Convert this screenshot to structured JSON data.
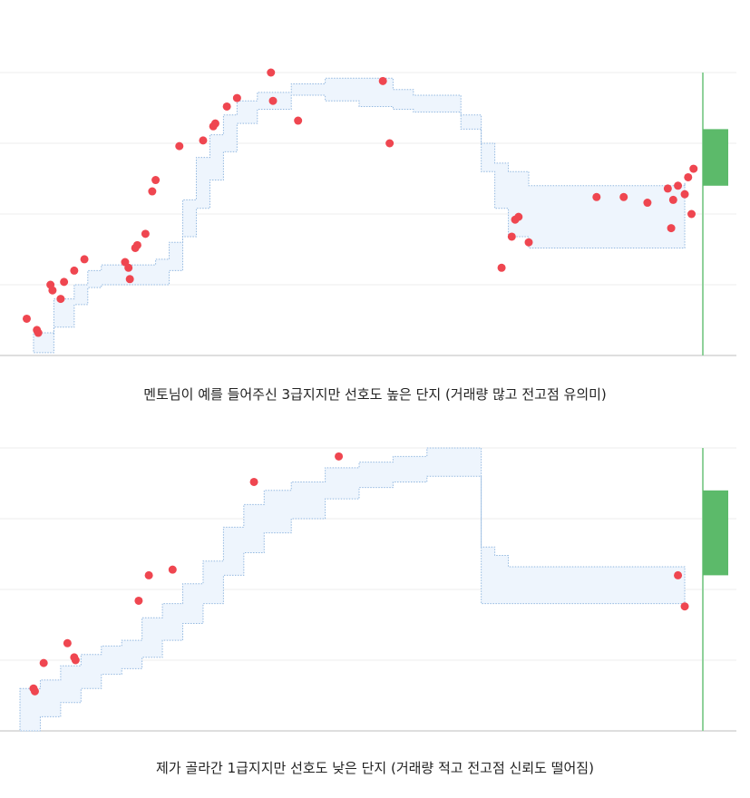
{
  "colors": {
    "band_fill": "#eef5fd",
    "band_stroke": "#93b8e0",
    "point": "#ef4650",
    "marker_line": "#8fd19a",
    "marker_box": "#5cba6a",
    "gridline": "#eeeeee",
    "baseline": "#bdbdbd"
  },
  "chart_data": [
    {
      "type": "scatter",
      "title": "",
      "caption": "멘토님이 예를 들어주신 3급지지만 선호도 높은 단지 (거래량 많고 전고점 유의미)",
      "xlim": [
        0,
        100
      ],
      "ylim": [
        0,
        100
      ],
      "grid": true,
      "band": {
        "x": [
          2,
          5,
          8,
          10,
          12,
          18,
          20,
          22,
          24,
          26,
          28,
          30,
          32,
          35,
          40,
          45,
          50,
          55,
          58,
          62,
          65,
          68,
          70,
          72,
          75,
          80,
          85,
          90,
          95,
          98
        ],
        "upper": [
          8,
          20,
          25,
          30,
          32,
          32,
          34,
          40,
          55,
          70,
          78,
          85,
          90,
          93,
          96,
          98,
          98,
          94,
          92,
          92,
          85,
          75,
          68,
          65,
          60,
          60,
          60,
          60,
          60,
          61
        ],
        "lower": [
          1,
          10,
          18,
          24,
          25,
          25,
          25,
          30,
          42,
          52,
          62,
          72,
          82,
          87,
          92,
          90,
          88,
          87,
          86,
          86,
          80,
          65,
          52,
          42,
          38,
          38,
          38,
          38,
          38,
          43
        ]
      },
      "series": [
        {
          "x": [
            1,
            2.5,
            2.7,
            4.5,
            4.8,
            6,
            6.5,
            8,
            9.5,
            15.5,
            16,
            16.2,
            17,
            17.3,
            18.5,
            19.5,
            20,
            23.5,
            27,
            28.5,
            28.8,
            30.5,
            32,
            37,
            37.3,
            41,
            53.5,
            54.5,
            71,
            72.5,
            73,
            73.5,
            75,
            85,
            89,
            92.5,
            95.5,
            96,
            96.3,
            97,
            98,
            98.5,
            99,
            99.3
          ],
          "y": [
            13,
            9,
            8,
            25,
            23,
            20,
            26,
            30,
            34,
            33,
            31,
            27,
            38,
            39,
            43,
            58,
            62,
            74,
            76,
            81,
            82,
            88,
            91,
            100,
            90,
            83,
            97,
            75,
            31,
            42,
            48,
            49,
            40,
            56,
            56,
            54,
            59,
            45,
            55,
            60,
            57,
            63,
            50,
            66
          ]
        }
      ],
      "marker_x": 100,
      "marker_range": [
        60,
        80
      ]
    },
    {
      "type": "scatter",
      "title": "",
      "caption": "제가 골라간 1급지지만 선호도 낮은 단지 (거래량 적고 전고점 신뢰도 떨어짐)",
      "xlim": [
        0,
        100
      ],
      "ylim": [
        0,
        100
      ],
      "grid": true,
      "band": {
        "x": [
          0,
          3,
          6,
          9,
          12,
          15,
          18,
          21,
          24,
          27,
          30,
          33,
          36,
          40,
          45,
          50,
          55,
          60,
          65,
          67,
          68,
          70,
          72,
          75,
          80,
          85,
          90,
          95,
          98
        ],
        "upper": [
          15,
          18,
          23,
          27,
          30,
          32,
          40,
          45,
          52,
          60,
          72,
          80,
          85,
          88,
          93,
          95,
          97,
          100,
          100,
          100,
          65,
          62,
          58,
          58,
          58,
          58,
          58,
          58,
          58
        ],
        "lower": [
          0,
          5,
          10,
          15,
          20,
          22,
          26,
          32,
          38,
          45,
          55,
          63,
          70,
          75,
          82,
          86,
          88,
          90,
          90,
          90,
          45,
          45,
          45,
          45,
          45,
          45,
          45,
          45,
          45
        ]
      },
      "series": [
        {
          "x": [
            2,
            2.2,
            3.5,
            7,
            8,
            8.2,
            17.5,
            19,
            22.5,
            34.5,
            47,
            97,
            98
          ],
          "y": [
            15,
            14,
            24,
            31,
            26,
            25,
            46,
            55,
            57,
            88,
            97,
            55,
            44
          ]
        }
      ],
      "marker_x": 100,
      "marker_range": [
        55,
        85
      ]
    }
  ]
}
